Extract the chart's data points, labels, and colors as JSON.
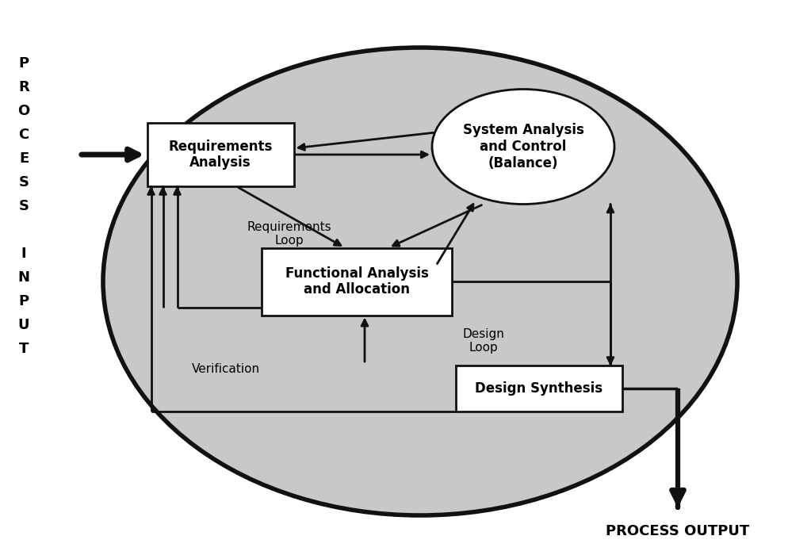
{
  "bg_color": "#ffffff",
  "ellipse_color": "#c8c8c8",
  "ellipse_edge": "#111111",
  "box_color": "#ffffff",
  "box_edge": "#111111",
  "oval_color": "#ffffff",
  "oval_edge": "#111111",
  "arrow_color": "#111111",
  "text_color": "#000000",
  "process_input_chars": [
    "P",
    "R",
    "O",
    "C",
    "E",
    "S",
    "S",
    " ",
    "I",
    "N",
    "P",
    "U",
    "T"
  ],
  "process_output_text": "PROCESS OUTPUT",
  "req_analysis_text": "Requirements\nAnalysis",
  "sys_analysis_text": "System Analysis\nand Control\n(Balance)",
  "func_analysis_text": "Functional Analysis\nand Allocation",
  "design_synth_text": "Design Synthesis",
  "req_loop_text": "Requirements\nLoop",
  "design_loop_text": "Design\nLoop",
  "verification_text": "Verification",
  "fig_w": 10.23,
  "fig_h": 7.0,
  "dpi": 100
}
